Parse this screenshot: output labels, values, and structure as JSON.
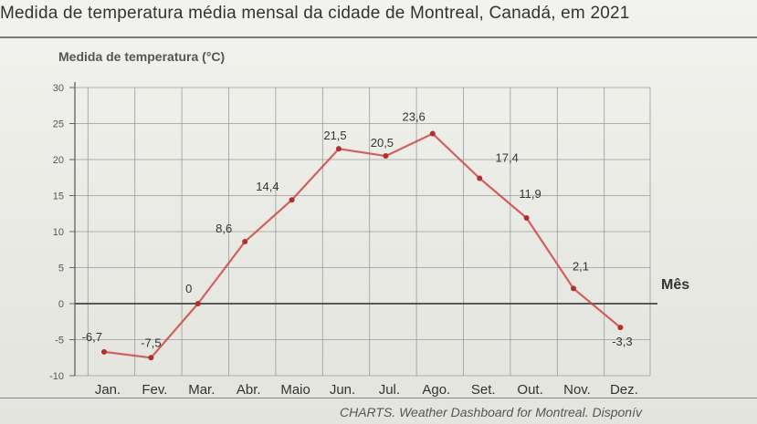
{
  "page": {
    "title": "Medida de temperatura média mensal da cidade de Montreal, Canadá, em 2021",
    "source": "CHARTS. Weather Dashboard for Montreal. Disponív"
  },
  "chart_data": {
    "type": "line",
    "title": "",
    "ylabel": "Medida de temperatura (°C)",
    "xlabel": "Mês",
    "categories": [
      "Jan.",
      "Fev.",
      "Mar.",
      "Abr.",
      "Maio",
      "Jun.",
      "Jul.",
      "Ago.",
      "Set.",
      "Out.",
      "Nov.",
      "Dez."
    ],
    "series": [
      {
        "values": [
          -6.7,
          -7.5,
          0,
          8.6,
          14.4,
          21.5,
          20.5,
          23.6,
          17.4,
          11.9,
          2.1,
          -3.3
        ]
      }
    ],
    "data_labels": [
      "-6,7",
      "-7,5",
      "0",
      "8,6",
      "14,4",
      "21,5",
      "20,5",
      "23,6",
      "17,4",
      "11,9",
      "2,1",
      "-3,3"
    ],
    "ylim": [
      -10,
      30
    ],
    "yticks": [
      -10,
      -5,
      0,
      5,
      10,
      15,
      20,
      25,
      30
    ],
    "ytick_labels": [
      "-10",
      "-5",
      "0",
      "5",
      "10",
      "15",
      "20",
      "25",
      "30"
    ],
    "grid": true,
    "line_color": "#c84a4a",
    "marker_color": "#b03030"
  }
}
